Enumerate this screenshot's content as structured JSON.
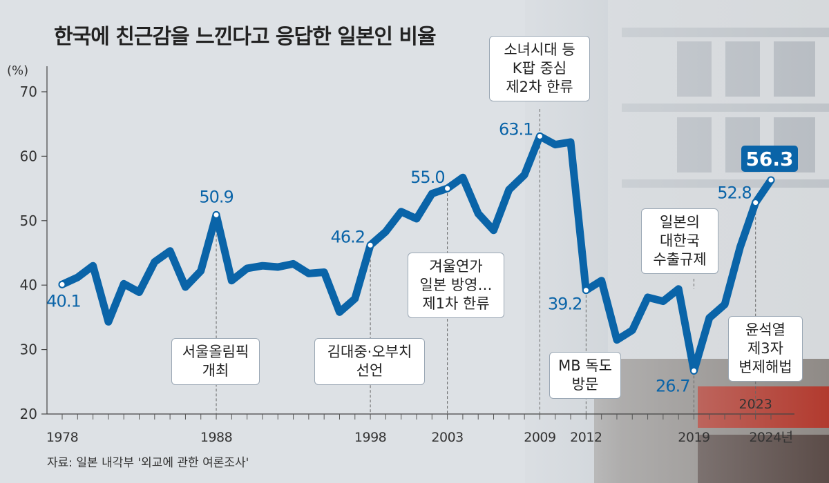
{
  "header": {
    "title": "한국에 친근감을 느낀다고 응답한 일본인 비율",
    "source": "자료: 일본 내각부 '외교에 관한 여론조사'"
  },
  "colors": {
    "line": "#0a64a8",
    "highlight_label_bg": "#0a64a8",
    "background": "#dde1e5"
  },
  "chart_data": {
    "type": "line",
    "title": "한국에 친근감을 느낀다고 응답한 일본인 비율",
    "ylabel": "(%)",
    "xlabel": "",
    "ylim": [
      20,
      70
    ],
    "xlim": [
      1978,
      2024
    ],
    "y_ticks": [
      "20",
      "30",
      "40",
      "50",
      "60",
      "70"
    ],
    "x_tick_labels": [
      {
        "x": 1978,
        "label": "1978"
      },
      {
        "x": 1988,
        "label": "1988"
      },
      {
        "x": 1998,
        "label": "1998"
      },
      {
        "x": 2003,
        "label": "2003"
      },
      {
        "x": 2009,
        "label": "2009"
      },
      {
        "x": 2012,
        "label": "2012"
      },
      {
        "x": 2019,
        "label": "2019"
      },
      {
        "x": 2024,
        "label": "2024년"
      }
    ],
    "series": [
      {
        "x": [
          1978,
          1979,
          1980,
          1981,
          1982,
          1983,
          1984,
          1985,
          1986,
          1987,
          1988,
          1989,
          1990,
          1991,
          1992,
          1993,
          1994,
          1995,
          1996,
          1997,
          1998,
          1999,
          2000,
          2001,
          2002,
          2003,
          2004,
          2005,
          2006,
          2007,
          2008,
          2009,
          2010,
          2011,
          2012,
          2013,
          2014,
          2015,
          2016,
          2017,
          2018,
          2019,
          2020,
          2021,
          2022,
          2023,
          2024
        ],
        "values": [
          40.1,
          41.2,
          43.0,
          34.3,
          40.2,
          38.9,
          43.6,
          45.3,
          39.7,
          42.2,
          50.9,
          40.7,
          42.6,
          43.0,
          42.8,
          43.3,
          41.8,
          42.0,
          35.8,
          37.9,
          46.2,
          48.3,
          51.4,
          50.3,
          54.2,
          55.0,
          56.7,
          51.1,
          48.5,
          54.8,
          57.1,
          63.1,
          61.8,
          62.2,
          39.2,
          40.7,
          31.5,
          33.0,
          38.1,
          37.5,
          39.4,
          26.7,
          34.9,
          37.0,
          45.9,
          52.8,
          56.3
        ]
      }
    ],
    "point_labels": [
      {
        "x": 1978,
        "text": "40.1"
      },
      {
        "x": 1988,
        "text": "50.9"
      },
      {
        "x": 1998,
        "text": "46.2"
      },
      {
        "x": 2003,
        "text": "55.0"
      },
      {
        "x": 2009,
        "text": "63.1"
      },
      {
        "x": 2012,
        "text": "39.2"
      },
      {
        "x": 2019,
        "text": "26.7"
      },
      {
        "x": 2023,
        "text": "52.8"
      },
      {
        "x": 2024,
        "text": "56.3",
        "highlight": true
      }
    ],
    "annotations": [
      {
        "x": 1988,
        "text": "서울올림픽\n개최"
      },
      {
        "x": 1998,
        "text": "김대중·오부치\n선언"
      },
      {
        "x": 2003,
        "text": "겨울연가\n일본 방영…\n제1차 한류"
      },
      {
        "x": 2009,
        "text": "소녀시대 등\nK팝 중심\n제2차 한류"
      },
      {
        "x": 2012,
        "text": "MB 독도\n방문"
      },
      {
        "x": 2019,
        "text": "일본의\n대한국\n수출규제"
      },
      {
        "x": 2023,
        "text": "윤석열\n제3자\n변제해법",
        "year_label": "2023"
      }
    ],
    "grid": false
  }
}
